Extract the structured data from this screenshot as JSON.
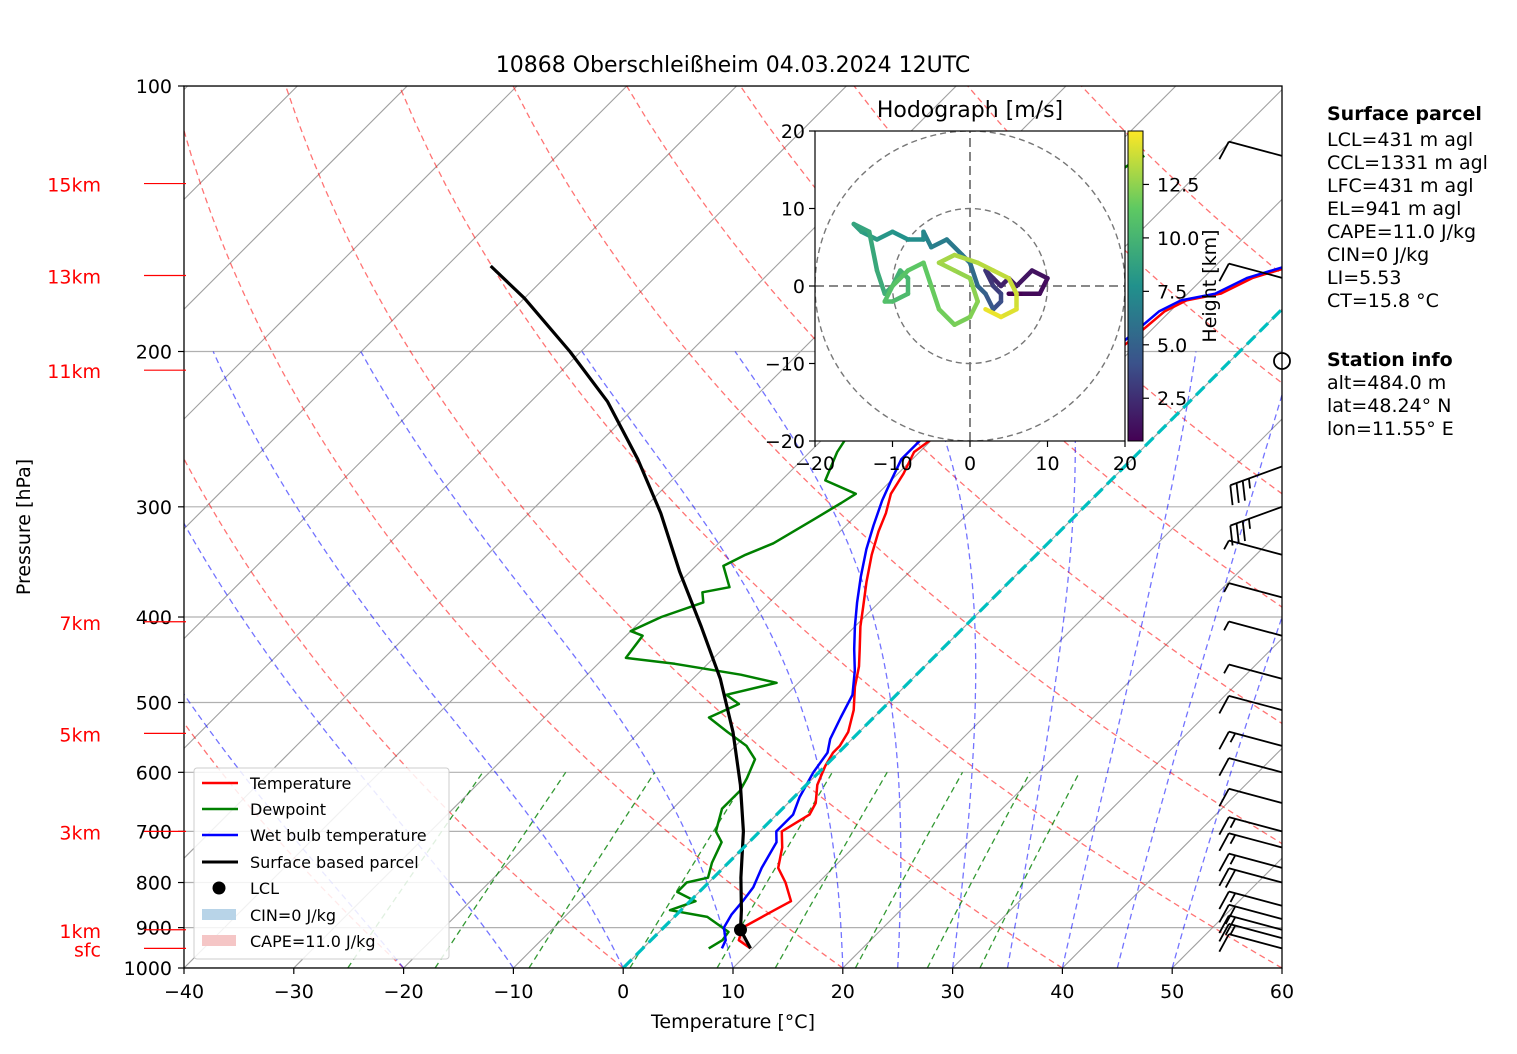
{
  "title": "10868 Oberschleißheim 04.03.2024 12UTC",
  "colors": {
    "temperature": "#ff0000",
    "dewpoint": "#008000",
    "wetbulb": "#0000ff",
    "parcel": "#000000",
    "dry_adiabat": "#ff0000",
    "moist_adiabat": "#0000ff",
    "mixing_ratio": "#008000",
    "isotherm": "#a0a0a0",
    "zero_isotherm": "#00bfbf",
    "cin_fill": "#b8d4e8",
    "cape_fill": "#f5c6c6"
  },
  "chart_data": [
    {
      "type": "line",
      "subtype": "skew-t log-p",
      "title": "10868 Oberschleißheim 04.03.2024 12UTC",
      "xlabel": "Temperature [°C]",
      "ylabel": "Pressure [hPa]",
      "xlim": [
        -40,
        60
      ],
      "ylim": [
        1000,
        100
      ],
      "y_scale": "log",
      "x_ticks": [
        "−40",
        "−30",
        "−20",
        "−10",
        "0",
        "10",
        "20",
        "30",
        "40",
        "50",
        "60"
      ],
      "y_ticks": [
        "100",
        "200",
        "300",
        "400",
        "500",
        "600",
        "700",
        "800",
        "900",
        "1000"
      ],
      "height_labels": [
        {
          "label": "15km",
          "p": 129
        },
        {
          "label": "13km",
          "p": 164
        },
        {
          "label": "11km",
          "p": 210
        },
        {
          "label": "7km",
          "p": 405
        },
        {
          "label": "5km",
          "p": 542
        },
        {
          "label": "3km",
          "p": 700
        },
        {
          "label": "1km",
          "p": 905
        },
        {
          "label": "sfc",
          "p": 950
        }
      ],
      "series": [
        {
          "name": "Temperature",
          "points": [
            [
              9.8,
              950
            ],
            [
              8.0,
              930
            ],
            [
              7.2,
              900
            ],
            [
              8.5,
              860
            ],
            [
              9.2,
              840
            ],
            [
              7.0,
              800
            ],
            [
              5.0,
              770
            ],
            [
              3.5,
              730
            ],
            [
              2.0,
              700
            ],
            [
              3.0,
              670
            ],
            [
              2.5,
              650
            ],
            [
              1.0,
              620
            ],
            [
              0.0,
              590
            ],
            [
              -0.5,
              570
            ],
            [
              -0.5,
              560
            ],
            [
              -1.0,
              540
            ],
            [
              -2.5,
              510
            ],
            [
              -4.5,
              480
            ],
            [
              -6.0,
              455
            ],
            [
              -7.5,
              435
            ],
            [
              -9.5,
              410
            ],
            [
              -11.0,
              390
            ],
            [
              -13.0,
              365
            ],
            [
              -15.0,
              340
            ],
            [
              -16.5,
              320
            ],
            [
              -17.5,
              305
            ],
            [
              -18.8,
              290
            ],
            [
              -19.5,
              275
            ],
            [
              -20.5,
              260
            ],
            [
              -20.0,
              250
            ],
            [
              -19.5,
              240
            ],
            [
              -17.5,
              230
            ],
            [
              -16.0,
              220
            ],
            [
              -14.0,
              212
            ],
            [
              -11.5,
              205
            ],
            [
              -11.0,
              195
            ],
            [
              -10.5,
              180
            ],
            [
              -9.5,
              175
            ],
            [
              -7.0,
              172
            ],
            [
              -5.5,
              165
            ],
            [
              -3.0,
              160
            ],
            [
              -2.5,
              150
            ],
            [
              -1.0,
              145
            ],
            [
              0.0,
              140
            ],
            [
              2.0,
              135
            ],
            [
              4.0,
              132
            ],
            [
              6.0,
              128
            ],
            [
              7.5,
              126
            ],
            [
              7.0,
              122
            ],
            [
              7.5,
              120
            ]
          ]
        },
        {
          "name": "Dewpoint",
          "points": [
            [
              6.0,
              950
            ],
            [
              6.5,
              930
            ],
            [
              6.3,
              910
            ],
            [
              3.0,
              875
            ],
            [
              -1.0,
              860
            ],
            [
              0.5,
              840
            ],
            [
              -2.0,
              820
            ],
            [
              -2.0,
              800
            ],
            [
              -0.5,
              790
            ],
            [
              -1.5,
              760
            ],
            [
              -2.5,
              720
            ],
            [
              -4.0,
              700
            ],
            [
              -5.5,
              660
            ],
            [
              -5.5,
              630
            ],
            [
              -6.0,
              610
            ],
            [
              -7.0,
              580
            ],
            [
              -9.0,
              560
            ],
            [
              -12.0,
              540
            ],
            [
              -15.0,
              520
            ],
            [
              -13.5,
              502
            ],
            [
              -15.5,
              490
            ],
            [
              -12.0,
              475
            ],
            [
              -16.0,
              465
            ],
            [
              -23.0,
              452
            ],
            [
              -28.0,
              445
            ],
            [
              -28.5,
              420
            ],
            [
              -30.0,
              415
            ],
            [
              -28.5,
              400
            ],
            [
              -26.0,
              385
            ],
            [
              -27.0,
              375
            ],
            [
              -25.0,
              370
            ],
            [
              -27.5,
              350
            ],
            [
              -26.5,
              340
            ],
            [
              -25.0,
              330
            ],
            [
              -23.5,
              310
            ],
            [
              -22.5,
              297
            ],
            [
              -22.0,
              290
            ],
            [
              -26.0,
              280
            ],
            [
              -27.5,
              260
            ],
            [
              -29.0,
              230
            ],
            [
              -30.0,
              215
            ],
            [
              -32.0,
              205
            ],
            [
              -32.5,
              198
            ],
            [
              -32.5,
              180
            ],
            [
              -31.5,
              165
            ],
            [
              -29.5,
              150
            ],
            [
              -28.5,
              140
            ],
            [
              -28.0,
              130
            ],
            [
              -27.0,
              122
            ],
            [
              -26.5,
              120
            ]
          ]
        },
        {
          "name": "Wet bulb temperature",
          "points": [
            [
              7.2,
              950
            ],
            [
              6.8,
              930
            ],
            [
              5.5,
              900
            ],
            [
              5.0,
              870
            ],
            [
              4.8,
              840
            ],
            [
              4.5,
              810
            ],
            [
              3.5,
              770
            ],
            [
              2.5,
              720
            ],
            [
              1.5,
              700
            ],
            [
              1.5,
              670
            ],
            [
              0.5,
              640
            ],
            [
              -0.5,
              600
            ],
            [
              -1.0,
              570
            ],
            [
              -2.0,
              550
            ],
            [
              -3.0,
              520
            ],
            [
              -4.0,
              490
            ],
            [
              -6.0,
              460
            ],
            [
              -8.0,
              435
            ],
            [
              -10.0,
              410
            ],
            [
              -12.0,
              385
            ],
            [
              -14.0,
              360
            ],
            [
              -16.0,
              335
            ],
            [
              -17.5,
              315
            ],
            [
              -19.0,
              295
            ],
            [
              -20.0,
              280
            ],
            [
              -21.0,
              265
            ],
            [
              -21.0,
              250
            ],
            [
              -20.5,
              240
            ],
            [
              -19.0,
              230
            ],
            [
              -17.0,
              220
            ],
            [
              -14.5,
              212
            ],
            [
              -12.0,
              205
            ],
            [
              -11.5,
              195
            ],
            [
              -11.0,
              180
            ],
            [
              -10.0,
              175
            ],
            [
              -7.5,
              172
            ],
            [
              -6.0,
              165
            ],
            [
              -3.5,
              160
            ],
            [
              -3.0,
              150
            ],
            [
              -1.5,
              145
            ],
            [
              -0.5,
              140
            ],
            [
              1.5,
              135
            ],
            [
              3.5,
              132
            ],
            [
              5.5,
              128
            ],
            [
              7.0,
              126
            ],
            [
              6.5,
              122
            ],
            [
              7.0,
              120
            ]
          ]
        },
        {
          "name": "Surface based parcel",
          "points": [
            [
              9.8,
              950
            ],
            [
              7.2,
              905
            ],
            [
              5.5,
              860
            ],
            [
              2.5,
              790
            ],
            [
              -1.5,
              700
            ],
            [
              -6.0,
              620
            ],
            [
              -11.5,
              540
            ],
            [
              -17.5,
              470
            ],
            [
              -24.0,
              410
            ],
            [
              -31.0,
              355
            ],
            [
              -38.0,
              305
            ],
            [
              -45.0,
              265
            ],
            [
              -53.0,
              228
            ],
            [
              -61.0,
              200
            ],
            [
              -70.0,
              174
            ],
            [
              -76.0,
              160
            ]
          ]
        },
        {
          "name": "0 °C isotherm",
          "points": [
            [
              0,
              1000
            ],
            [
              0,
              200
            ],
            [
              0,
              125
            ]
          ]
        }
      ],
      "markers": [
        {
          "name": "LCL",
          "point": [
            7.2,
            905
          ]
        }
      ],
      "legend": {
        "position": "lower left",
        "entries": [
          "Temperature",
          "Dewpoint",
          "Wet bulb temperature",
          "Surface based parcel",
          "LCL",
          "CIN=0 J/kg",
          "CAPE=11.0 J/kg"
        ]
      },
      "wind_barbs": [
        {
          "p": 950,
          "speed_kt": 10
        },
        {
          "p": 925,
          "speed_kt": 15
        },
        {
          "p": 905,
          "speed_kt": 20
        },
        {
          "p": 880,
          "speed_kt": 20
        },
        {
          "p": 850,
          "speed_kt": 15
        },
        {
          "p": 800,
          "speed_kt": 20
        },
        {
          "p": 770,
          "speed_kt": 15
        },
        {
          "p": 730,
          "speed_kt": 15
        },
        {
          "p": 700,
          "speed_kt": 15
        },
        {
          "p": 650,
          "speed_kt": 10
        },
        {
          "p": 600,
          "speed_kt": 10
        },
        {
          "p": 560,
          "speed_kt": 15
        },
        {
          "p": 510,
          "speed_kt": 10
        },
        {
          "p": 470,
          "speed_kt": 5
        },
        {
          "p": 420,
          "speed_kt": 5
        },
        {
          "p": 380,
          "speed_kt": 5
        },
        {
          "p": 340,
          "speed_kt": 5
        },
        {
          "p": 300,
          "speed_kt": 35
        },
        {
          "p": 270,
          "speed_kt": 35
        },
        {
          "p": 205,
          "speed_kt": 0
        },
        {
          "p": 165,
          "speed_kt": 10
        },
        {
          "p": 120,
          "speed_kt": 10
        }
      ]
    },
    {
      "type": "line",
      "subtype": "hodograph",
      "title": "Hodograph [m/s]",
      "xlim": [
        -20,
        20
      ],
      "ylim": [
        -20,
        20
      ],
      "x_ticks": [
        "−20",
        "−10",
        "0",
        "10",
        "20"
      ],
      "y_ticks": [
        "−20",
        "−10",
        "0",
        "10",
        "20"
      ],
      "rings": [
        10,
        20
      ],
      "colorbar": {
        "label": "Height [km]",
        "ticks": [
          "2.5",
          "5.0",
          "7.5",
          "10.0",
          "12.5"
        ],
        "range": [
          0.5,
          15
        ],
        "colormap": "viridis"
      },
      "points_u_v_h": [
        [
          5,
          -1,
          0.5
        ],
        [
          7,
          -1,
          0.8
        ],
        [
          9,
          -1,
          1.0
        ],
        [
          10,
          1,
          1.2
        ],
        [
          8,
          2,
          1.4
        ],
        [
          6,
          0,
          1.6
        ],
        [
          5,
          1,
          1.8
        ],
        [
          4,
          0,
          2.0
        ],
        [
          3,
          1,
          2.4
        ],
        [
          2,
          2,
          2.8
        ],
        [
          3,
          0,
          3.2
        ],
        [
          4,
          -1,
          3.6
        ],
        [
          4,
          -2,
          4.0
        ],
        [
          3,
          -3,
          4.5
        ],
        [
          2,
          -1,
          5.0
        ],
        [
          1,
          0,
          5.5
        ],
        [
          0,
          3,
          6.0
        ],
        [
          -1,
          4,
          6.3
        ],
        [
          -3,
          6,
          6.6
        ],
        [
          -5,
          5,
          6.9
        ],
        [
          -6,
          7,
          7.2
        ],
        [
          -6,
          6,
          7.5
        ],
        [
          -8,
          6,
          7.8
        ],
        [
          -10,
          7,
          8.1
        ],
        [
          -12,
          6,
          8.4
        ],
        [
          -14,
          7,
          8.7
        ],
        [
          -15,
          8,
          9.0
        ],
        [
          -13,
          7,
          9.2
        ],
        [
          -12,
          2,
          9.4
        ],
        [
          -11,
          -1,
          9.6
        ],
        [
          -10,
          0,
          9.8
        ],
        [
          -9,
          2,
          10.0
        ],
        [
          -8,
          1,
          10.2
        ],
        [
          -8,
          -1,
          10.4
        ],
        [
          -10,
          -2,
          10.6
        ],
        [
          -11,
          -2,
          10.8
        ],
        [
          -10,
          0,
          11.0
        ],
        [
          -8,
          2,
          11.2
        ],
        [
          -6,
          3,
          11.4
        ],
        [
          -5,
          0,
          11.6
        ],
        [
          -4,
          -3,
          11.8
        ],
        [
          -2,
          -5,
          12.0
        ],
        [
          0,
          -4,
          12.2
        ],
        [
          1,
          -2,
          12.4
        ],
        [
          0,
          1,
          12.6
        ],
        [
          -2,
          2,
          12.8
        ],
        [
          -4,
          3,
          13.0
        ],
        [
          -2,
          4,
          13.2
        ],
        [
          1,
          3,
          13.4
        ],
        [
          3,
          2,
          13.6
        ],
        [
          5,
          1,
          13.8
        ],
        [
          6,
          -1,
          14.0
        ],
        [
          6,
          -3,
          14.3
        ],
        [
          4,
          -4,
          14.6
        ],
        [
          2,
          -3,
          15.0
        ]
      ]
    }
  ],
  "info": {
    "surface_heading": "Surface parcel",
    "surface_lines": [
      "LCL=431 m agl",
      "CCL=1331 m agl",
      "LFC=431 m agl",
      "EL=941 m agl",
      "CAPE=11.0 J/kg",
      "CIN=0 J/kg",
      "LI=5.53",
      "CT=15.8 °C"
    ],
    "station_heading": "Station info",
    "station_lines": [
      "alt=484.0 m",
      "lat=48.24° N",
      "lon=11.55° E"
    ]
  }
}
